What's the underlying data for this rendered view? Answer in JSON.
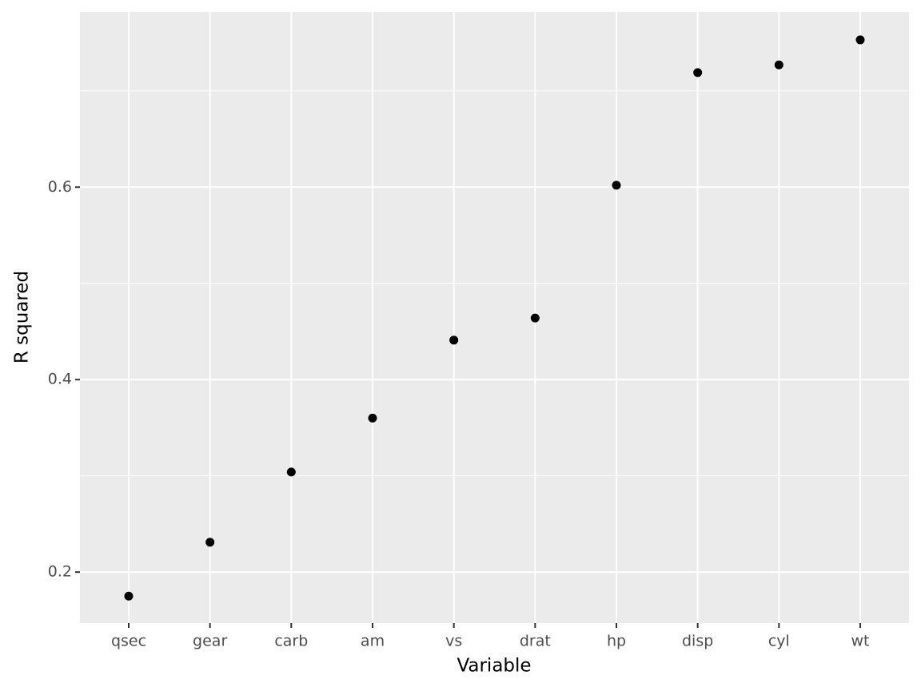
{
  "chart_data": {
    "type": "scatter",
    "x_label": "Variable",
    "y_label": "R squared",
    "categories": [
      "qsec",
      "gear",
      "carb",
      "am",
      "vs",
      "drat",
      "hp",
      "disp",
      "cyl",
      "wt"
    ],
    "values": [
      0.175,
      0.231,
      0.304,
      0.36,
      0.441,
      0.464,
      0.602,
      0.719,
      0.727,
      0.753
    ],
    "color": "#000000",
    "ylim": [
      0.147,
      0.782
    ],
    "yticks": [
      0.2,
      0.4,
      0.6
    ],
    "grid": true
  }
}
